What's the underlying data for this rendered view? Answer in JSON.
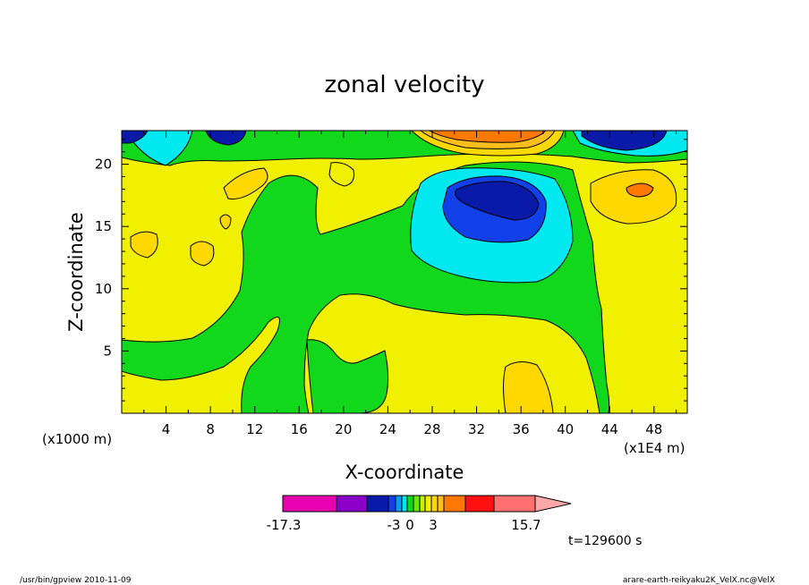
{
  "chart_data": {
    "type": "contour",
    "title": "zonal velocity",
    "xlabel": "X-coordinate",
    "ylabel": "Z-coordinate",
    "x_unit_left": "(x1000 m)",
    "x_unit_right": "(x1E4 m)",
    "x_ticks": [
      "4",
      "8",
      "12",
      "16",
      "20",
      "24",
      "28",
      "32",
      "36",
      "40",
      "44",
      "48"
    ],
    "y_ticks": [
      "5",
      "10",
      "15",
      "20"
    ],
    "xlim": [
      0,
      51
    ],
    "ylim": [
      0,
      22.7
    ],
    "colorbar": {
      "colors": [
        "#e800b0",
        "#8a00c8",
        "#0a1aa8",
        "#1240e8",
        "#00a0ff",
        "#00e8f0",
        "#12d81c",
        "#66ea00",
        "#c8f000",
        "#f0f000",
        "#ffd800",
        "#ffbe1a",
        "#ff7800",
        "#ff1010",
        "#ff7070",
        "#ffa8a8"
      ],
      "labels": [
        "-17.3",
        "-3",
        "0",
        "3",
        "15.7"
      ]
    },
    "time_label": "t=129600 s",
    "footer_left": "/usr/bin/gpview  2010-11-09",
    "footer_right": "arare-earth-reikyaku2K_VelX.nc@VelX",
    "regions": [
      {
        "level": "0..3",
        "color": "#f0f000",
        "note": "background"
      },
      {
        "level": "-3..0",
        "color": "#12d81c",
        "note": "lower-left, middle and right bands"
      },
      {
        "level": "-6..-3",
        "color": "#00e8f0",
        "note": "central negative anomaly near x=28-40, z=10-19"
      },
      {
        "level": "<-6",
        "color": "#0a1aa8",
        "note": "core near x=30-37, z=16-18; top edge near x=1-9, 44-49"
      },
      {
        "level": "3..6",
        "color": "#ffd800",
        "note": "small positive patches"
      },
      {
        "level": ">6",
        "color": "#ff7800",
        "note": "top near x=27-38"
      }
    ]
  }
}
